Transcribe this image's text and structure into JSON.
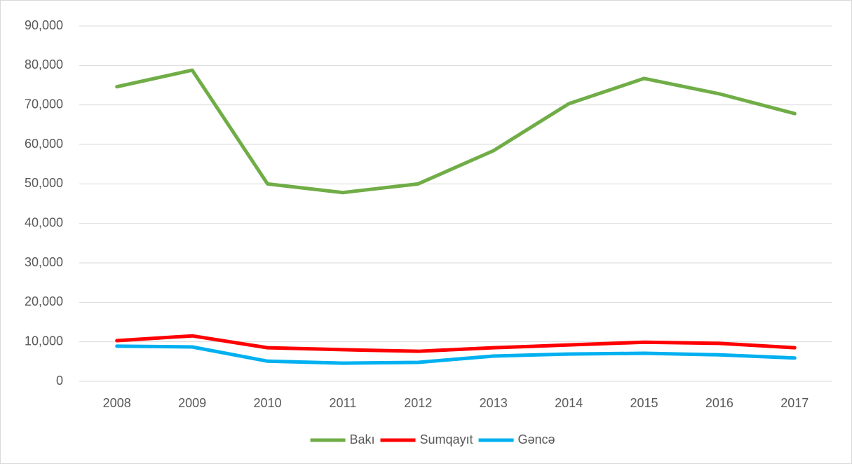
{
  "chart_data": {
    "type": "line",
    "categories": [
      "2008",
      "2009",
      "2010",
      "2011",
      "2012",
      "2013",
      "2014",
      "2015",
      "2016",
      "2017"
    ],
    "series": [
      {
        "name": "Bakı",
        "color": "#70ad47",
        "values": [
          74600,
          78800,
          50000,
          47800,
          50000,
          58400,
          70300,
          76700,
          72800,
          67800
        ]
      },
      {
        "name": "Sumqayıt",
        "color": "#ff0000",
        "values": [
          10300,
          11500,
          8500,
          8000,
          7600,
          8500,
          9200,
          9900,
          9600,
          8500
        ]
      },
      {
        "name": "Gəncə",
        "color": "#00b0f0",
        "values": [
          8900,
          8700,
          5100,
          4600,
          4800,
          6400,
          6900,
          7100,
          6700,
          5900
        ]
      }
    ],
    "ylim": [
      0,
      90000
    ],
    "yticks": [
      0,
      {
        "value": 10000,
        "label": "10,000"
      },
      {
        "value": 20000,
        "label": "20,000"
      },
      {
        "value": 30000,
        "label": "30,000"
      },
      {
        "value": 40000,
        "label": "40,000"
      },
      {
        "value": 50000,
        "label": "50,000"
      },
      {
        "value": 60000,
        "label": "60,000"
      },
      {
        "value": 70000,
        "label": "70,000"
      },
      {
        "value": 80000,
        "label": "80,000"
      },
      {
        "value": 90000,
        "label": "90,000"
      }
    ],
    "grid": true,
    "legend": "bottom"
  }
}
